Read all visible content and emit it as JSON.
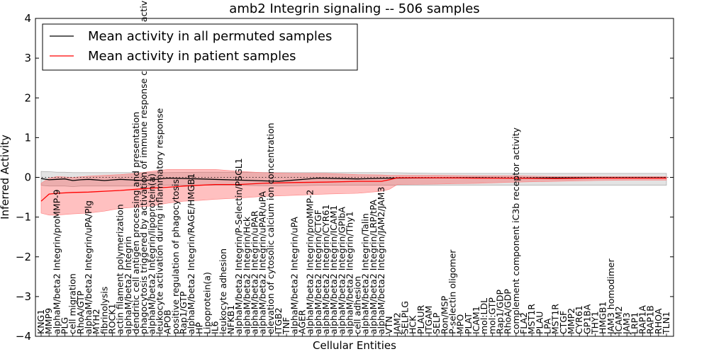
{
  "chart_data": {
    "type": "line",
    "title": "amb2 Integrin signaling -- 506 samples",
    "xlabel": "Cellular Entities",
    "ylabel": "Inferred Activity",
    "ylim": [
      -4,
      4
    ],
    "yticks": [
      -4,
      -3,
      -2,
      -1,
      0,
      1,
      2,
      3,
      4
    ],
    "legend": {
      "placement": "top-left",
      "entries": [
        {
          "label": "Mean activity in all permuted samples",
          "color": "#000000"
        },
        {
          "label": "Mean activity in patient samples",
          "color": "#ff0000"
        }
      ]
    },
    "categories": [
      "KNG1",
      "MMP9",
      "alphaM/beta2 Integrin/proMMP-9",
      "PLG",
      "cell migration",
      "RhoA/GTP",
      "alphaM/beta2 Integrin/uPA/Plg",
      "MYH2",
      "fibrinolysis",
      "ROCK1",
      "actin filament polymerization",
      "alphaM/beta2 Integrin",
      "dendritic cell antigen processing and presentation",
      "phagocytosis triggered by activation of immune response cell surface activating receptor",
      "alphaM/beta2 Integrin/lipoprotein(a)",
      "leukocyte activation during inflammatory response",
      "APOB",
      "positive regulation of phagocytosis",
      "Rap1/GTP",
      "alphaM/beta2 Integrin/RAGE/HMGB1",
      "HP",
      "Lipoprotein(a)",
      "IL6",
      "leukocyte adhesion",
      "NFKB1",
      "alphaM/beta2 Integrin/P-Selectin/PSGL1",
      "alphaM/beta2 Integrin/Hck",
      "alphaM/beta2 Integrin/uPAR",
      "alphaM/beta2 Integrin/uPAR/uPA",
      "elevation of cytosolic calcium ion concentration",
      "ITGB2",
      "TNF",
      "alphaM/beta2 Integrin/uPA",
      "AGER",
      "alphaM/beta2 Integrin/proMMP-2",
      "alphaM/beta2 Integrin/CTGF",
      "alphaM/beta2 Integrin/CYR61",
      "alphaM/beta2 Integrin/ICAM1",
      "alphaM/beta2 Integrin/GPIbA",
      "alphaM/beta2 Integrin/Thy1",
      "cell adhesion",
      "alphaM/beta2 Integrin/Talin",
      "alphaM/beta2 Integrin/LRP/tPA",
      "alphaM/beta2 Integrin/JAM2/JAM3",
      "VTN",
      "JAM2",
      "SELPLG",
      "HCK",
      "PLAUR",
      "ITGAM",
      "SELP",
      "Ron/MSP",
      "P-selectin oligomer",
      "MPO",
      "PLAT",
      "ICAM1",
      "mol:LDL",
      "mol:GTP",
      "Rap1/GDP",
      "RhoA/GDP",
      "complement component iC3b receptor activity",
      "FLA2",
      "MST1R",
      "PLAU",
      "LPA",
      "MST1R",
      "CTGF",
      "MMP2",
      "CYR61",
      "GP1BA",
      "THY1",
      "HMGB1",
      "JAM3 homodimer",
      "ICAM2",
      "JAM3",
      "LRP1",
      "RAP1A",
      "RAP1B",
      "RHOA",
      "TLN1"
    ],
    "series": [
      {
        "name": "Mean activity in all permuted samples",
        "color": "#000000",
        "x": [
          0,
          1,
          2,
          3,
          4,
          5,
          6,
          8,
          10,
          13,
          16,
          20,
          25,
          30,
          35,
          40,
          44,
          50,
          55,
          60,
          65,
          70,
          75,
          79
        ],
        "values": [
          -0.03,
          -0.06,
          -0.05,
          -0.04,
          -0.08,
          -0.06,
          -0.05,
          -0.08,
          -0.05,
          -0.08,
          -0.02,
          -0.04,
          -0.07,
          -0.1,
          -0.02,
          -0.04,
          -0.02,
          -0.01,
          -0.01,
          -0.02,
          -0.01,
          -0.01,
          -0.01,
          -0.01
        ],
        "band_low": [
          -0.2,
          -0.22,
          -0.22,
          -0.22,
          -0.23,
          -0.22,
          -0.22,
          -0.22,
          -0.22,
          -0.22,
          -0.2,
          -0.2,
          -0.2,
          -0.22,
          -0.2,
          -0.2,
          -0.2,
          -0.2,
          -0.2,
          -0.2,
          -0.2,
          -0.2,
          -0.2,
          -0.2
        ],
        "band_high": [
          0.15,
          0.14,
          0.13,
          0.13,
          0.12,
          0.12,
          0.12,
          0.12,
          0.12,
          0.12,
          0.12,
          0.13,
          0.13,
          0.12,
          0.12,
          0.12,
          0.12,
          0.1,
          0.1,
          0.1,
          0.1,
          0.1,
          0.1,
          0.1
        ]
      },
      {
        "name": "Mean activity in patient samples",
        "color": "#ff0000",
        "x": [
          0,
          1,
          2,
          4,
          6,
          8,
          10,
          12,
          14,
          16,
          18,
          20,
          22,
          25,
          28,
          32,
          36,
          40,
          43,
          44,
          45,
          50,
          55,
          60,
          65,
          70,
          75,
          79
        ],
        "values": [
          -0.6,
          -0.42,
          -0.4,
          -0.38,
          -0.37,
          -0.35,
          -0.33,
          -0.3,
          -0.27,
          -0.25,
          -0.22,
          -0.2,
          -0.18,
          -0.18,
          -0.15,
          -0.13,
          -0.12,
          -0.1,
          -0.1,
          -0.06,
          -0.01,
          -0.01,
          -0.02,
          -0.02,
          -0.03,
          -0.02,
          -0.02,
          -0.02
        ],
        "band_low": [
          -0.9,
          -0.95,
          -0.95,
          -0.92,
          -0.9,
          -0.85,
          -0.78,
          -0.75,
          -0.72,
          -0.65,
          -0.6,
          -0.58,
          -0.55,
          -0.52,
          -0.48,
          -0.45,
          -0.42,
          -0.4,
          -0.35,
          -0.3,
          -0.18,
          -0.17,
          -0.15,
          -0.12,
          -0.1,
          -0.08,
          -0.07,
          -0.07
        ],
        "band_high": [
          -0.15,
          -0.02,
          0.02,
          0.0,
          0.03,
          0.05,
          0.07,
          0.1,
          0.15,
          0.2,
          0.2,
          0.2,
          0.2,
          0.15,
          0.12,
          0.1,
          0.1,
          0.07,
          0.06,
          0.05,
          0.05,
          0.05,
          0.04,
          0.04,
          0.02,
          0.02,
          0.02,
          0.02
        ]
      }
    ],
    "zero_line": {
      "style": "dotted",
      "value": 0
    }
  }
}
